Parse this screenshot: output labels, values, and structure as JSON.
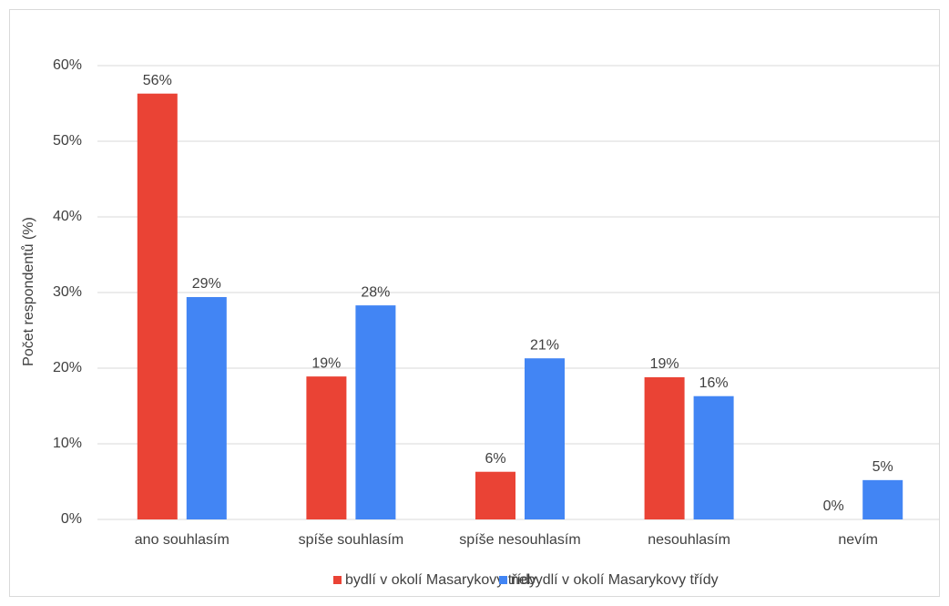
{
  "chart_data": {
    "type": "bar",
    "y_label": "Počet respondentů (%)",
    "categories": [
      "ano souhlasím",
      "spíše souhlasím",
      "spíše nesouhlasím",
      "nesouhlasím",
      "nevím"
    ],
    "series": [
      {
        "name": "bydlí v okolí Masarykovy třídy",
        "color": "#ea4335",
        "values": [
          56.3,
          18.9,
          6.3,
          18.8,
          0
        ],
        "value_labels": [
          "56%",
          "19%",
          "6%",
          "19%",
          "0%"
        ]
      },
      {
        "name": "nebydlí v okolí Masarykovy třídy",
        "color": "#4285f4",
        "values": [
          29.4,
          28.3,
          21.3,
          16.3,
          5.2
        ],
        "value_labels": [
          "29%",
          "28%",
          "21%",
          "16%",
          "5%"
        ]
      }
    ],
    "ylim": [
      0,
      60
    ],
    "yticks": [
      {
        "value": 0,
        "label": "0%"
      },
      {
        "value": 10,
        "label": "10%"
      },
      {
        "value": 20,
        "label": "20%"
      },
      {
        "value": 30,
        "label": "30%"
      },
      {
        "value": 40,
        "label": "40%"
      },
      {
        "value": 50,
        "label": "50%"
      },
      {
        "value": 60,
        "label": "60%"
      }
    ],
    "grid": true,
    "legend": "bottom"
  }
}
